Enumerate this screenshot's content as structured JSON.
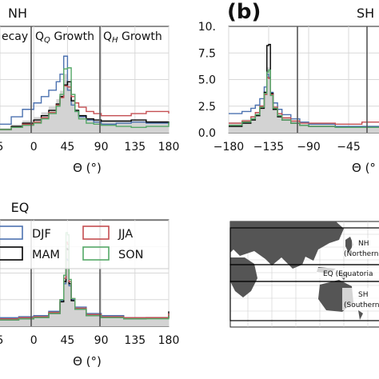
{
  "chart_data": [
    {
      "panel": "NH",
      "type": "line",
      "title": "NH",
      "xlabel": "Θ (°)",
      "xlim": [
        -45,
        180
      ],
      "ylim": [
        0,
        10
      ],
      "x_ticks": [
        "5",
        "0",
        "45",
        "90",
        "135",
        "180"
      ],
      "regions": [
        "ecay",
        "Q_Q Growth",
        "Q_H Growth"
      ],
      "region_boundaries": [
        0,
        90
      ],
      "x": [
        -45,
        -30,
        -15,
        0,
        10,
        20,
        30,
        35,
        40,
        45,
        50,
        55,
        60,
        70,
        80,
        90,
        110,
        130,
        150,
        180
      ],
      "series": [
        {
          "name": "DJF",
          "values": [
            0.8,
            1.5,
            2.2,
            2.8,
            3.4,
            4.0,
            4.8,
            5.5,
            7.2,
            4.0,
            2.6,
            2.0,
            1.5,
            1.2,
            1.0,
            0.8,
            0.9,
            1.0,
            0.9,
            0.9
          ]
        },
        {
          "name": "MAM",
          "values": [
            0.3,
            0.6,
            0.9,
            1.2,
            1.6,
            2.1,
            2.7,
            3.4,
            4.5,
            4.8,
            3.0,
            2.1,
            1.6,
            1.3,
            1.2,
            1.1,
            1.1,
            1.2,
            1.0,
            0.8
          ]
        },
        {
          "name": "JJA",
          "values": [
            0.3,
            0.5,
            0.8,
            1.0,
            1.4,
            1.9,
            2.6,
            3.3,
            4.4,
            4.3,
            3.4,
            2.8,
            2.4,
            2.0,
            1.8,
            1.6,
            1.6,
            1.8,
            2.0,
            1.8
          ]
        },
        {
          "name": "SON",
          "values": [
            0.3,
            0.5,
            0.7,
            0.9,
            1.3,
            1.8,
            2.5,
            3.6,
            6.0,
            6.1,
            3.6,
            2.0,
            1.3,
            0.9,
            0.8,
            0.7,
            0.6,
            0.5,
            0.6,
            1.0
          ]
        }
      ]
    },
    {
      "panel": "SH",
      "type": "line",
      "label": "(b)",
      "title": "SH",
      "xlabel": "Θ (°",
      "xlim": [
        -180,
        0
      ],
      "ylim": [
        0,
        10
      ],
      "y_ticks": [
        "0.0",
        "2.5",
        "5.0",
        "7.5",
        "10."
      ],
      "x_ticks": [
        "−180",
        "−135",
        "−90",
        "−45",
        "0"
      ],
      "x": [
        -180,
        -165,
        -155,
        -150,
        -145,
        -140,
        -137,
        -135,
        -133,
        -130,
        -125,
        -120,
        -110,
        -100,
        -90,
        -60,
        -30,
        -10,
        0
      ],
      "series": [
        {
          "name": "DJF",
          "values": [
            1.8,
            2.0,
            2.3,
            2.6,
            3.2,
            4.3,
            5.5,
            5.2,
            3.8,
            2.8,
            2.2,
            1.7,
            1.3,
            1.0,
            0.8,
            0.6,
            0.6,
            0.9,
            1.2
          ]
        },
        {
          "name": "MAM",
          "values": [
            0.6,
            0.9,
            1.2,
            1.6,
            2.3,
            3.8,
            8.2,
            8.3,
            3.7,
            2.2,
            1.5,
            1.2,
            0.9,
            0.7,
            0.6,
            0.5,
            0.5,
            0.7,
            1.0
          ]
        },
        {
          "name": "JJA",
          "values": [
            0.9,
            1.1,
            1.5,
            1.9,
            2.5,
            3.6,
            5.2,
            5.1,
            3.6,
            2.4,
            1.8,
            1.4,
            1.1,
            0.9,
            0.9,
            0.8,
            1.0,
            1.4,
            2.2
          ]
        },
        {
          "name": "SON",
          "values": [
            0.7,
            1.0,
            1.3,
            1.7,
            2.4,
            3.7,
            5.7,
            5.9,
            3.5,
            2.3,
            1.6,
            1.2,
            0.9,
            0.7,
            0.6,
            0.5,
            0.5,
            0.7,
            1.0
          ]
        }
      ]
    },
    {
      "panel": "EQ",
      "type": "line",
      "title": "EQ",
      "xlabel": "Θ (°)",
      "xlim": [
        -45,
        180
      ],
      "ylim": [
        0,
        10
      ],
      "x_ticks": [
        "5",
        "0",
        "45",
        "90",
        "135",
        "180"
      ],
      "x": [
        -45,
        -20,
        0,
        20,
        35,
        40,
        43,
        45,
        47,
        50,
        55,
        70,
        90,
        120,
        150,
        180
      ],
      "series": [
        {
          "name": "DJF",
          "values": [
            0.8,
            0.9,
            1.0,
            1.4,
            2.4,
            4.0,
            6.3,
            6.2,
            3.8,
            2.5,
            1.8,
            1.2,
            1.0,
            0.8,
            0.8,
            1.0
          ]
        },
        {
          "name": "MAM",
          "values": [
            0.6,
            0.7,
            0.8,
            1.2,
            2.3,
            4.2,
            7.3,
            7.2,
            4.0,
            2.4,
            1.6,
            1.0,
            0.8,
            0.7,
            0.8,
            1.4
          ]
        },
        {
          "name": "JJA",
          "values": [
            0.7,
            0.8,
            0.9,
            1.3,
            2.5,
            4.5,
            7.9,
            7.7,
            4.2,
            2.6,
            1.7,
            1.1,
            0.9,
            0.8,
            0.8,
            1.2
          ]
        },
        {
          "name": "SON",
          "values": [
            0.6,
            0.7,
            0.8,
            1.2,
            2.5,
            4.8,
            8.8,
            8.6,
            4.4,
            2.6,
            1.6,
            1.0,
            0.8,
            0.7,
            0.7,
            1.0
          ]
        }
      ]
    }
  ],
  "legend": [
    {
      "name": "DJF",
      "color": "#4c72b0"
    },
    {
      "name": "JJA",
      "color": "#c44e52"
    },
    {
      "name": "MAM",
      "color": "#000000"
    },
    {
      "name": "SON",
      "color": "#55a868"
    }
  ],
  "fill_color": "#d3d3d3",
  "map": {
    "regions": [
      {
        "code": "NH",
        "name": "(Northern Hem"
      },
      {
        "code": "EQ",
        "name": "EQ (Equatoria"
      },
      {
        "code": "SH",
        "name": "(Southern Hem"
      }
    ]
  }
}
